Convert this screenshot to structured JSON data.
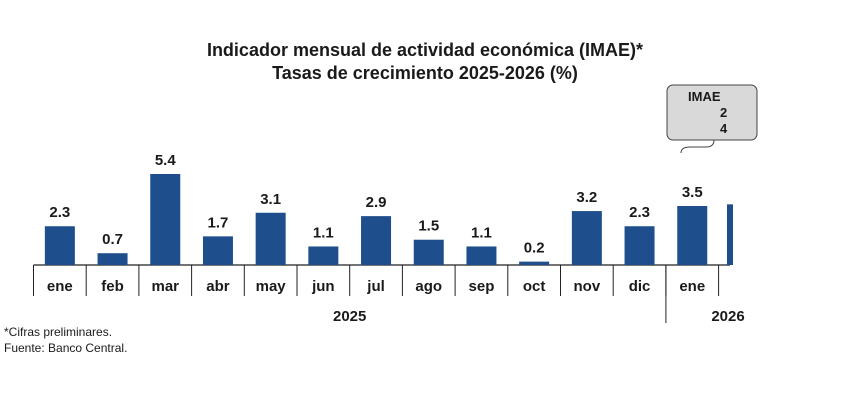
{
  "title_line1": "Indicador mensual de actividad económica (IMAE)*",
  "title_line2": "Tasas de crecimiento 2025-2026 (%)",
  "chart_data": {
    "type": "bar",
    "title": "Indicador mensual de actividad económica (IMAE)*",
    "subtitle": "Tasas de crecimiento 2025-2026 (%)",
    "categories": [
      "ene",
      "feb",
      "mar",
      "abr",
      "may",
      "jun",
      "jul",
      "ago",
      "sep",
      "oct",
      "nov",
      "dic",
      "ene"
    ],
    "values": [
      2.3,
      0.7,
      5.4,
      1.7,
      3.1,
      1.1,
      2.9,
      1.5,
      1.1,
      0.2,
      3.2,
      2.3,
      3.5
    ],
    "year_groups": [
      {
        "label": "2025",
        "count": 12
      },
      {
        "label": "2026",
        "count": 1
      }
    ],
    "bar_color": "#1f4e8c",
    "ylim": [
      0,
      5.4
    ],
    "grid": false,
    "legend": "none",
    "callout_text": [
      "IMAE",
      "2",
      "4"
    ]
  },
  "notes": {
    "line1": "*Cifras preliminares.",
    "line2": "Fuente: Banco Central."
  }
}
